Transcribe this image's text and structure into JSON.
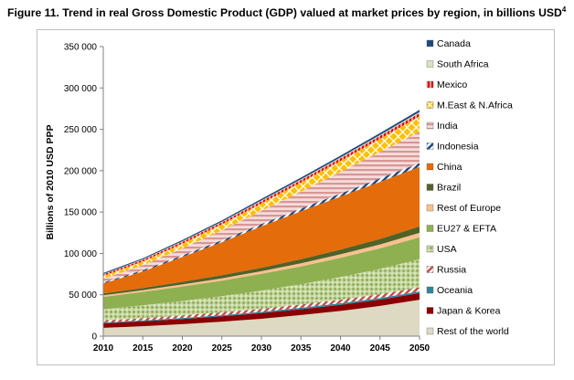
{
  "caption": {
    "text": "Figure 11. Trend in real Gross Domestic Product (GDP) valued at market prices by region, in billions USD",
    "footnote": "4"
  },
  "chart_data": {
    "type": "area",
    "stacked": true,
    "title": "",
    "xlabel": "",
    "ylabel": "Billions of 2010 USD PPP",
    "x": [
      2010,
      2015,
      2020,
      2025,
      2030,
      2035,
      2040,
      2045,
      2050
    ],
    "xticks": [
      "2010",
      "2015",
      "2020",
      "2025",
      "2030",
      "2035",
      "2040",
      "2045",
      "2050"
    ],
    "ylim": [
      0,
      350000
    ],
    "yticks": [
      "0",
      "50 000",
      "100 000",
      "150 000",
      "200 000",
      "250 000",
      "300 000",
      "350 000"
    ],
    "grid": false,
    "legend_position": "right",
    "series": [
      {
        "name": "Rest of the world",
        "color": "#ddd9c3",
        "pattern": "solid",
        "values": [
          10000,
          12000,
          14500,
          17500,
          21000,
          25500,
          30500,
          36500,
          44000
        ]
      },
      {
        "name": "Japan & Korea",
        "color": "#8b0000",
        "pattern": "solid",
        "values": [
          5500,
          5900,
          6200,
          6500,
          6800,
          7100,
          7400,
          7700,
          8000
        ]
      },
      {
        "name": "Oceania",
        "color": "#31849b",
        "pattern": "solid",
        "values": [
          1000,
          1100,
          1250,
          1400,
          1550,
          1700,
          1850,
          2000,
          2150
        ]
      },
      {
        "name": "Russia",
        "color": "#c0504d",
        "pattern": "diagonal",
        "values": [
          2500,
          2800,
          3100,
          3400,
          3700,
          4000,
          4300,
          4600,
          4900
        ]
      },
      {
        "name": "USA",
        "color": "#9bbb59",
        "pattern": "dots",
        "values": [
          13500,
          15500,
          17500,
          19500,
          22000,
          24500,
          27500,
          30500,
          34000
        ]
      },
      {
        "name": "EU27 & EFTA",
        "color": "#8fb050",
        "pattern": "solid",
        "values": [
          15000,
          16200,
          17500,
          18800,
          20200,
          21600,
          23200,
          24800,
          26500
        ]
      },
      {
        "name": "Rest of Europe",
        "color": "#fac090",
        "pattern": "solid",
        "values": [
          1800,
          2100,
          2450,
          2800,
          3200,
          3650,
          4150,
          4700,
          5300
        ]
      },
      {
        "name": "Brazil",
        "color": "#4f6228",
        "pattern": "solid",
        "values": [
          2300,
          2700,
          3200,
          3700,
          4300,
          5000,
          5800,
          6700,
          7700
        ]
      },
      {
        "name": "China",
        "color": "#e46c0a",
        "pattern": "solid",
        "values": [
          12000,
          20000,
          30000,
          40000,
          50000,
          58000,
          64000,
          69000,
          72000
        ]
      },
      {
        "name": "Indonesia",
        "color": "#1f497d",
        "pattern": "diagonal",
        "values": [
          1200,
          1500,
          1900,
          2300,
          2700,
          3200,
          3700,
          4200,
          4700
        ]
      },
      {
        "name": "India",
        "color": "#e6b9b8",
        "pattern": "stripes",
        "values": [
          4500,
          6000,
          8500,
          12000,
          16000,
          20500,
          26000,
          32000,
          38000
        ]
      },
      {
        "name": "M.East & N.Africa",
        "color": "#ffc000",
        "pattern": "grid",
        "values": [
          3500,
          4500,
          5800,
          7300,
          9000,
          11000,
          13300,
          15800,
          18500
        ]
      },
      {
        "name": "Mexico",
        "color": "#ff0000",
        "pattern": "vertical",
        "values": [
          1700,
          1900,
          2100,
          2350,
          2600,
          2900,
          3200,
          3500,
          3800
        ]
      },
      {
        "name": "South Africa",
        "color": "#d7e4bd",
        "pattern": "solid",
        "values": [
          500,
          600,
          700,
          800,
          900,
          1000,
          1100,
          1250,
          1400
        ]
      },
      {
        "name": "Canada",
        "color": "#1f497d",
        "pattern": "solid",
        "values": [
          1300,
          1400,
          1550,
          1700,
          1850,
          2000,
          2150,
          2300,
          2500
        ]
      }
    ]
  }
}
